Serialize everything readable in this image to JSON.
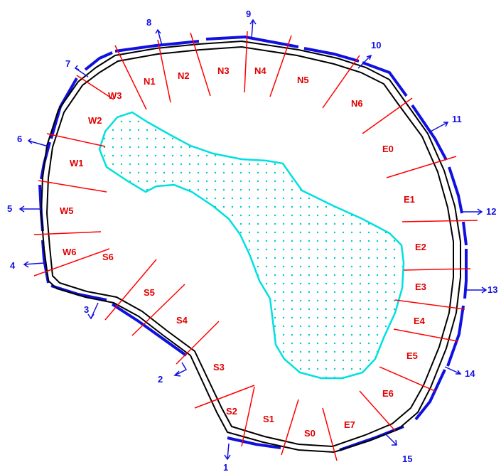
{
  "colors": {
    "outline": "#000000",
    "sector_line": "#ff0000",
    "sector_label": "#e00000",
    "blue": "#1010e0",
    "pond_stroke": "#00e0e0",
    "pond_dot": "#00c8c8"
  },
  "sector_labels": [
    "N1",
    "N2",
    "N3",
    "N4",
    "N5",
    "N6",
    "E0",
    "E1",
    "E2",
    "E3",
    "E4",
    "E5",
    "E6",
    "E7",
    "S0",
    "S1",
    "S2",
    "S3",
    "S4",
    "S5",
    "S6",
    "W6",
    "W5",
    "W1",
    "W2",
    "W3"
  ],
  "arrow_labels": [
    "1",
    "2",
    "3",
    "4",
    "5",
    "6",
    "7",
    "8",
    "9",
    "10",
    "11",
    "12",
    "13",
    "14",
    "15"
  ]
}
